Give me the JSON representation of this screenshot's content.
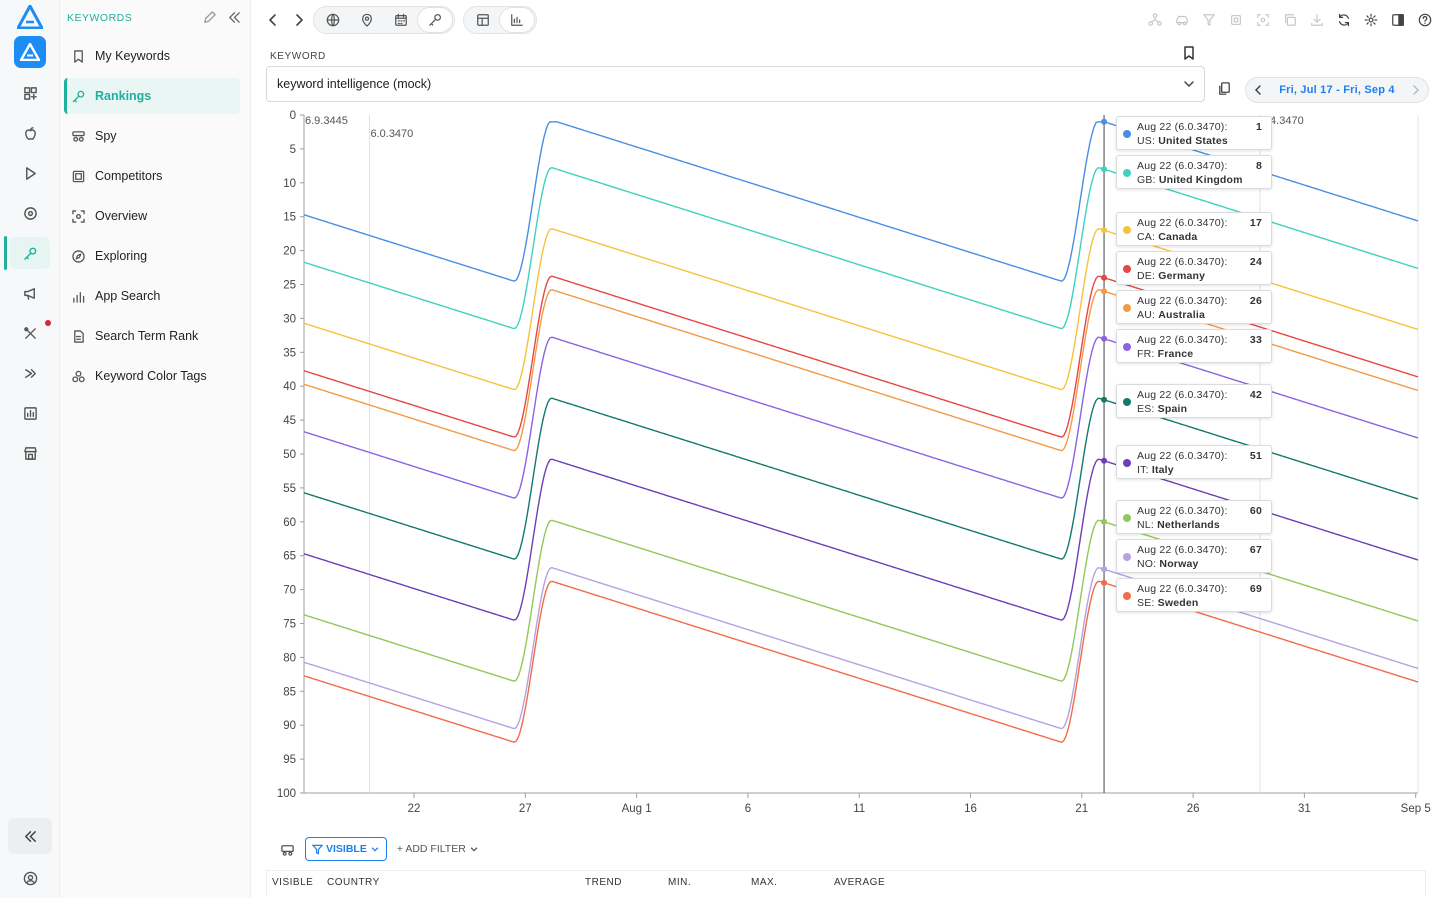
{
  "sidebar": {
    "section_title": "KEYWORDS",
    "items": [
      {
        "label": "My Keywords",
        "icon": "bookmark-icon"
      },
      {
        "label": "Rankings",
        "icon": "key-icon",
        "active": true
      },
      {
        "label": "Spy",
        "icon": "spy-icon"
      },
      {
        "label": "Competitors",
        "icon": "competitors-icon"
      },
      {
        "label": "Overview",
        "icon": "overview-icon"
      },
      {
        "label": "Exploring",
        "icon": "compass-icon"
      },
      {
        "label": "App Search",
        "icon": "bar-chart-icon"
      },
      {
        "label": "Search Term Rank",
        "icon": "document-icon"
      },
      {
        "label": "Keyword Color Tags",
        "icon": "color-tags-icon"
      }
    ]
  },
  "keyword": {
    "label": "KEYWORD",
    "value": "keyword intelligence (mock)"
  },
  "date_range": {
    "label": "Fri, Jul 17 - Fri, Sep 4"
  },
  "colors": {
    "accent": "#1fb09e",
    "link": "#1c7ff0"
  },
  "chart_data": {
    "type": "line",
    "y_reversed": true,
    "ylim": [
      0,
      100
    ],
    "y_ticks": [
      0,
      5,
      10,
      15,
      20,
      25,
      30,
      35,
      40,
      45,
      50,
      55,
      60,
      65,
      70,
      75,
      80,
      85,
      90,
      95,
      100
    ],
    "x_ticks": [
      "22",
      "27",
      "Aug 1",
      "6",
      "11",
      "16",
      "21",
      "26",
      "31",
      "Sep 5"
    ],
    "version_markers": [
      {
        "date": "Jul 20",
        "label": "6.0.3470"
      },
      {
        "date": "Aug 22",
        "label": ""
      },
      {
        "date": "Aug 29",
        "label": "6.4.3470"
      }
    ],
    "version_label_start": "6.9.3445",
    "hover_date": "Aug 22",
    "series": [
      {
        "code": "US",
        "name": "United States",
        "color": "#4a8ee3",
        "hover": 1
      },
      {
        "code": "GB",
        "name": "United Kingdom",
        "color": "#3fd1bf",
        "hover": 8
      },
      {
        "code": "CA",
        "name": "Canada",
        "color": "#f5c43a",
        "hover": 17
      },
      {
        "code": "DE",
        "name": "Germany",
        "color": "#e84545",
        "hover": 24
      },
      {
        "code": "AU",
        "name": "Australia",
        "color": "#f39a45",
        "hover": 26
      },
      {
        "code": "FR",
        "name": "France",
        "color": "#8b63e3",
        "hover": 33
      },
      {
        "code": "ES",
        "name": "Spain",
        "color": "#147a6c",
        "hover": 42
      },
      {
        "code": "IT",
        "name": "Italy",
        "color": "#6b3fb8",
        "hover": 51
      },
      {
        "code": "NL",
        "name": "Netherlands",
        "color": "#92c75a",
        "hover": 60
      },
      {
        "code": "NO",
        "name": "Norway",
        "color": "#b7a2e0",
        "hover": 67
      },
      {
        "code": "SE",
        "name": "Sweden",
        "color": "#f26b4a",
        "hover": 69
      }
    ]
  },
  "tooltip_version": "6.0.3470",
  "filters": {
    "visible": "VISIBLE",
    "add": "+ ADD FILTER"
  },
  "table": {
    "columns": [
      "VISIBLE",
      "COUNTRY",
      "TREND",
      "MIN.",
      "MAX.",
      "AVERAGE"
    ]
  }
}
